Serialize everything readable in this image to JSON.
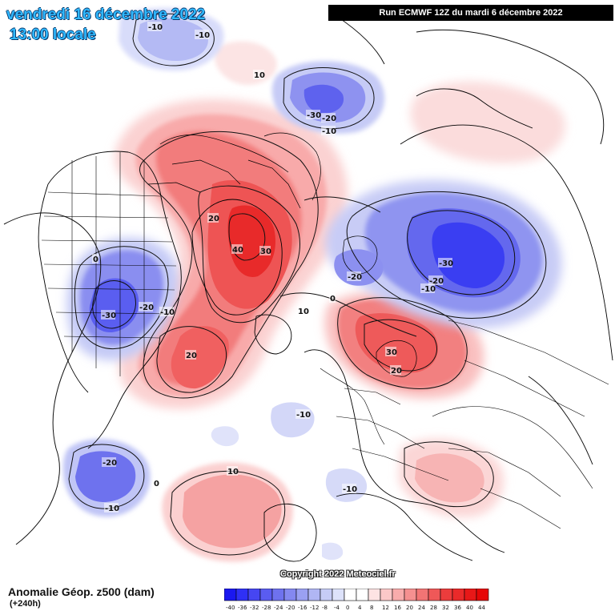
{
  "header": {
    "date_line": "vendredi 16 décembre 2022",
    "time_line": "13:00 locale",
    "run_info": "Run ECMWF 12Z du mardi 6 décembre 2022"
  },
  "footer": {
    "variable": "Anomalie Géop. z500 (dam)",
    "lead_time": "(+240h)",
    "copyright": "Copyright 2022 Meteociel.fr"
  },
  "legend": {
    "values": [
      "-40",
      "-36",
      "-32",
      "-28",
      "-24",
      "-20",
      "-16",
      "-12",
      "-8",
      "-4",
      "0",
      "4",
      "8",
      "12",
      "16",
      "20",
      "24",
      "28",
      "32",
      "36",
      "40",
      "44"
    ],
    "colors": [
      "#1a18f0",
      "#2f30f5",
      "#4646f2",
      "#5a5cf0",
      "#6e72ee",
      "#8488f0",
      "#9aa0f2",
      "#b0b6f4",
      "#c6ccf6",
      "#dde2fa",
      "#ffffff",
      "#ffffff",
      "#fde3e3",
      "#fbc8c8",
      "#f8acac",
      "#f59090",
      "#f27474",
      "#ef5858",
      "#ec3c3c",
      "#ea2a2a",
      "#e81818",
      "#e60606"
    ]
  },
  "contour_labels": [
    {
      "text": "-10"
    },
    {
      "text": "-10"
    },
    {
      "text": "10"
    },
    {
      "text": "-30"
    },
    {
      "text": "-20"
    },
    {
      "text": "-10"
    },
    {
      "text": "20"
    },
    {
      "text": "40"
    },
    {
      "text": "30"
    },
    {
      "text": "0"
    },
    {
      "text": "-30"
    },
    {
      "text": "-20"
    },
    {
      "text": "-10"
    },
    {
      "text": "-30"
    },
    {
      "text": "-20"
    },
    {
      "text": "-10"
    },
    {
      "text": "-20"
    },
    {
      "text": "0"
    },
    {
      "text": "10"
    },
    {
      "text": "30"
    },
    {
      "text": "20"
    },
    {
      "text": "20"
    },
    {
      "text": "-10"
    },
    {
      "text": "-20"
    },
    {
      "text": "-10"
    },
    {
      "text": "0"
    },
    {
      "text": "10"
    },
    {
      "text": "-10"
    }
  ]
}
